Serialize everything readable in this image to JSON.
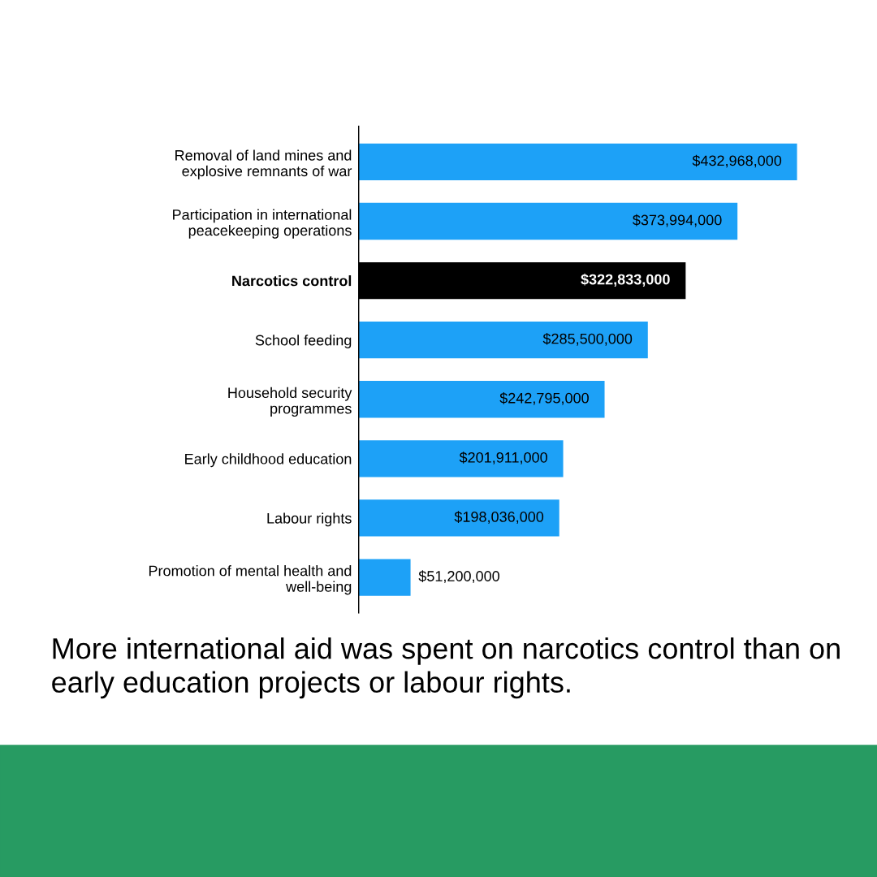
{
  "chart_data": {
    "type": "bar",
    "orientation": "horizontal",
    "categories": [
      "Removal of land mines and\nexplosive remnants of war",
      "Participation in international\npeacekeeping operations",
      "Narcotics control",
      "School feeding",
      "Household security\nprogrammes",
      "Early childhood education",
      "Labour rights",
      "Promotion of mental health and\nwell-being"
    ],
    "values": [
      432968000,
      373994000,
      322833000,
      285500000,
      242795000,
      201911000,
      198036000,
      51200000
    ],
    "colors": [
      "#1da1f7",
      "#1da1f7",
      "#000000",
      "#1da1f7",
      "#1da1f7",
      "#1da1f7",
      "#1da1f7",
      "#1da1f7"
    ],
    "value_labels": [
      "$432,968,000",
      "$373,994,000",
      "$322,833,000",
      "$285,500,000",
      "$242,795,000",
      "$201,911,000",
      "$198,036,000",
      "$51,200,000"
    ],
    "annotations": [
      "More international aid was spent on narcotics control than on early education projects or labour rights."
    ],
    "grid": false,
    "legend": false
  }
}
